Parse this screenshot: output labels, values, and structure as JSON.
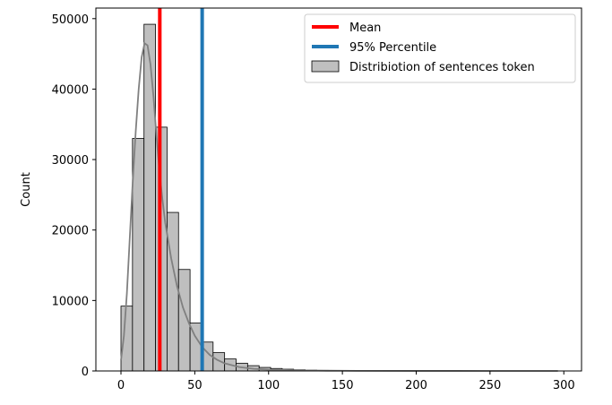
{
  "chart_data": {
    "type": "bar",
    "title": "",
    "xlabel": "",
    "ylabel": "Count",
    "xlim": [
      -17,
      312
    ],
    "ylim": [
      0,
      51500
    ],
    "xticks": [
      0,
      50,
      100,
      150,
      200,
      250,
      300
    ],
    "yticks": [
      0,
      10000,
      20000,
      30000,
      40000,
      50000
    ],
    "grid": false,
    "legend_position": "top-right",
    "bin_width": 7.8,
    "bins": [
      {
        "x0": 0.0,
        "x1": 7.8,
        "count": 9200
      },
      {
        "x0": 7.8,
        "x1": 15.6,
        "count": 33000
      },
      {
        "x0": 15.6,
        "x1": 23.4,
        "count": 49200
      },
      {
        "x0": 23.4,
        "x1": 31.2,
        "count": 34600
      },
      {
        "x0": 31.2,
        "x1": 39.0,
        "count": 22500
      },
      {
        "x0": 39.0,
        "x1": 46.8,
        "count": 14400
      },
      {
        "x0": 46.8,
        "x1": 54.6,
        "count": 6800
      },
      {
        "x0": 54.6,
        "x1": 62.4,
        "count": 4100
      },
      {
        "x0": 62.4,
        "x1": 70.2,
        "count": 2600
      },
      {
        "x0": 70.2,
        "x1": 78.0,
        "count": 1700
      },
      {
        "x0": 78.0,
        "x1": 85.8,
        "count": 1100
      },
      {
        "x0": 85.8,
        "x1": 93.6,
        "count": 750
      },
      {
        "x0": 93.6,
        "x1": 101.4,
        "count": 500
      },
      {
        "x0": 101.4,
        "x1": 109.2,
        "count": 350
      },
      {
        "x0": 109.2,
        "x1": 117.0,
        "count": 250
      },
      {
        "x0": 117.0,
        "x1": 124.8,
        "count": 170
      },
      {
        "x0": 124.8,
        "x1": 132.6,
        "count": 120
      },
      {
        "x0": 132.6,
        "x1": 140.4,
        "count": 80
      },
      {
        "x0": 140.4,
        "x1": 148.2,
        "count": 60
      },
      {
        "x0": 148.2,
        "x1": 156.0,
        "count": 45
      },
      {
        "x0": 156.0,
        "x1": 163.8,
        "count": 35
      },
      {
        "x0": 163.8,
        "x1": 171.6,
        "count": 25
      },
      {
        "x0": 171.6,
        "x1": 179.4,
        "count": 20
      },
      {
        "x0": 179.4,
        "x1": 187.2,
        "count": 15
      },
      {
        "x0": 187.2,
        "x1": 195.0,
        "count": 12
      },
      {
        "x0": 195.0,
        "x1": 202.8,
        "count": 10
      },
      {
        "x0": 202.8,
        "x1": 210.6,
        "count": 8
      },
      {
        "x0": 210.6,
        "x1": 218.4,
        "count": 6
      },
      {
        "x0": 218.4,
        "x1": 226.2,
        "count": 5
      },
      {
        "x0": 226.2,
        "x1": 234.0,
        "count": 4
      },
      {
        "x0": 234.0,
        "x1": 241.8,
        "count": 3
      },
      {
        "x0": 241.8,
        "x1": 249.6,
        "count": 3
      },
      {
        "x0": 249.6,
        "x1": 257.4,
        "count": 2
      },
      {
        "x0": 257.4,
        "x1": 265.2,
        "count": 2
      },
      {
        "x0": 265.2,
        "x1": 273.0,
        "count": 1
      },
      {
        "x0": 273.0,
        "x1": 280.8,
        "count": 1
      },
      {
        "x0": 280.8,
        "x1": 288.6,
        "count": 1
      },
      {
        "x0": 288.6,
        "x1": 296.4,
        "count": 1
      }
    ],
    "kde_curve": {
      "x": [
        0,
        2,
        4,
        6,
        8,
        10,
        12,
        14,
        16,
        18,
        20,
        22,
        24,
        26,
        28,
        30,
        34,
        38,
        42,
        46,
        50,
        55,
        60,
        65,
        70,
        80,
        90,
        100,
        120,
        140,
        160,
        200,
        250,
        296
      ],
      "y": [
        1500,
        5000,
        11000,
        19000,
        27000,
        34000,
        40000,
        44500,
        46500,
        46200,
        43500,
        39000,
        33500,
        28500,
        24500,
        21000,
        16000,
        12000,
        9000,
        6800,
        5000,
        3400,
        2300,
        1600,
        1100,
        550,
        300,
        180,
        80,
        40,
        20,
        8,
        3,
        1
      ]
    },
    "vlines": [
      {
        "name": "Mean",
        "x": 26.3,
        "color": "#ff0000"
      },
      {
        "name": "95% Percentile",
        "x": 55.0,
        "color": "#1f77b4"
      }
    ],
    "legend": [
      {
        "label": "Mean",
        "kind": "line",
        "color": "#ff0000"
      },
      {
        "label": "95% Percentile",
        "kind": "line",
        "color": "#1f77b4"
      },
      {
        "label": "Distribiotion of sentences token",
        "kind": "patch",
        "color": "#bfbfbf"
      }
    ],
    "colors": {
      "bar_fill": "#bfbfbf",
      "bar_edge": "#000000",
      "kde": "#808080"
    }
  }
}
